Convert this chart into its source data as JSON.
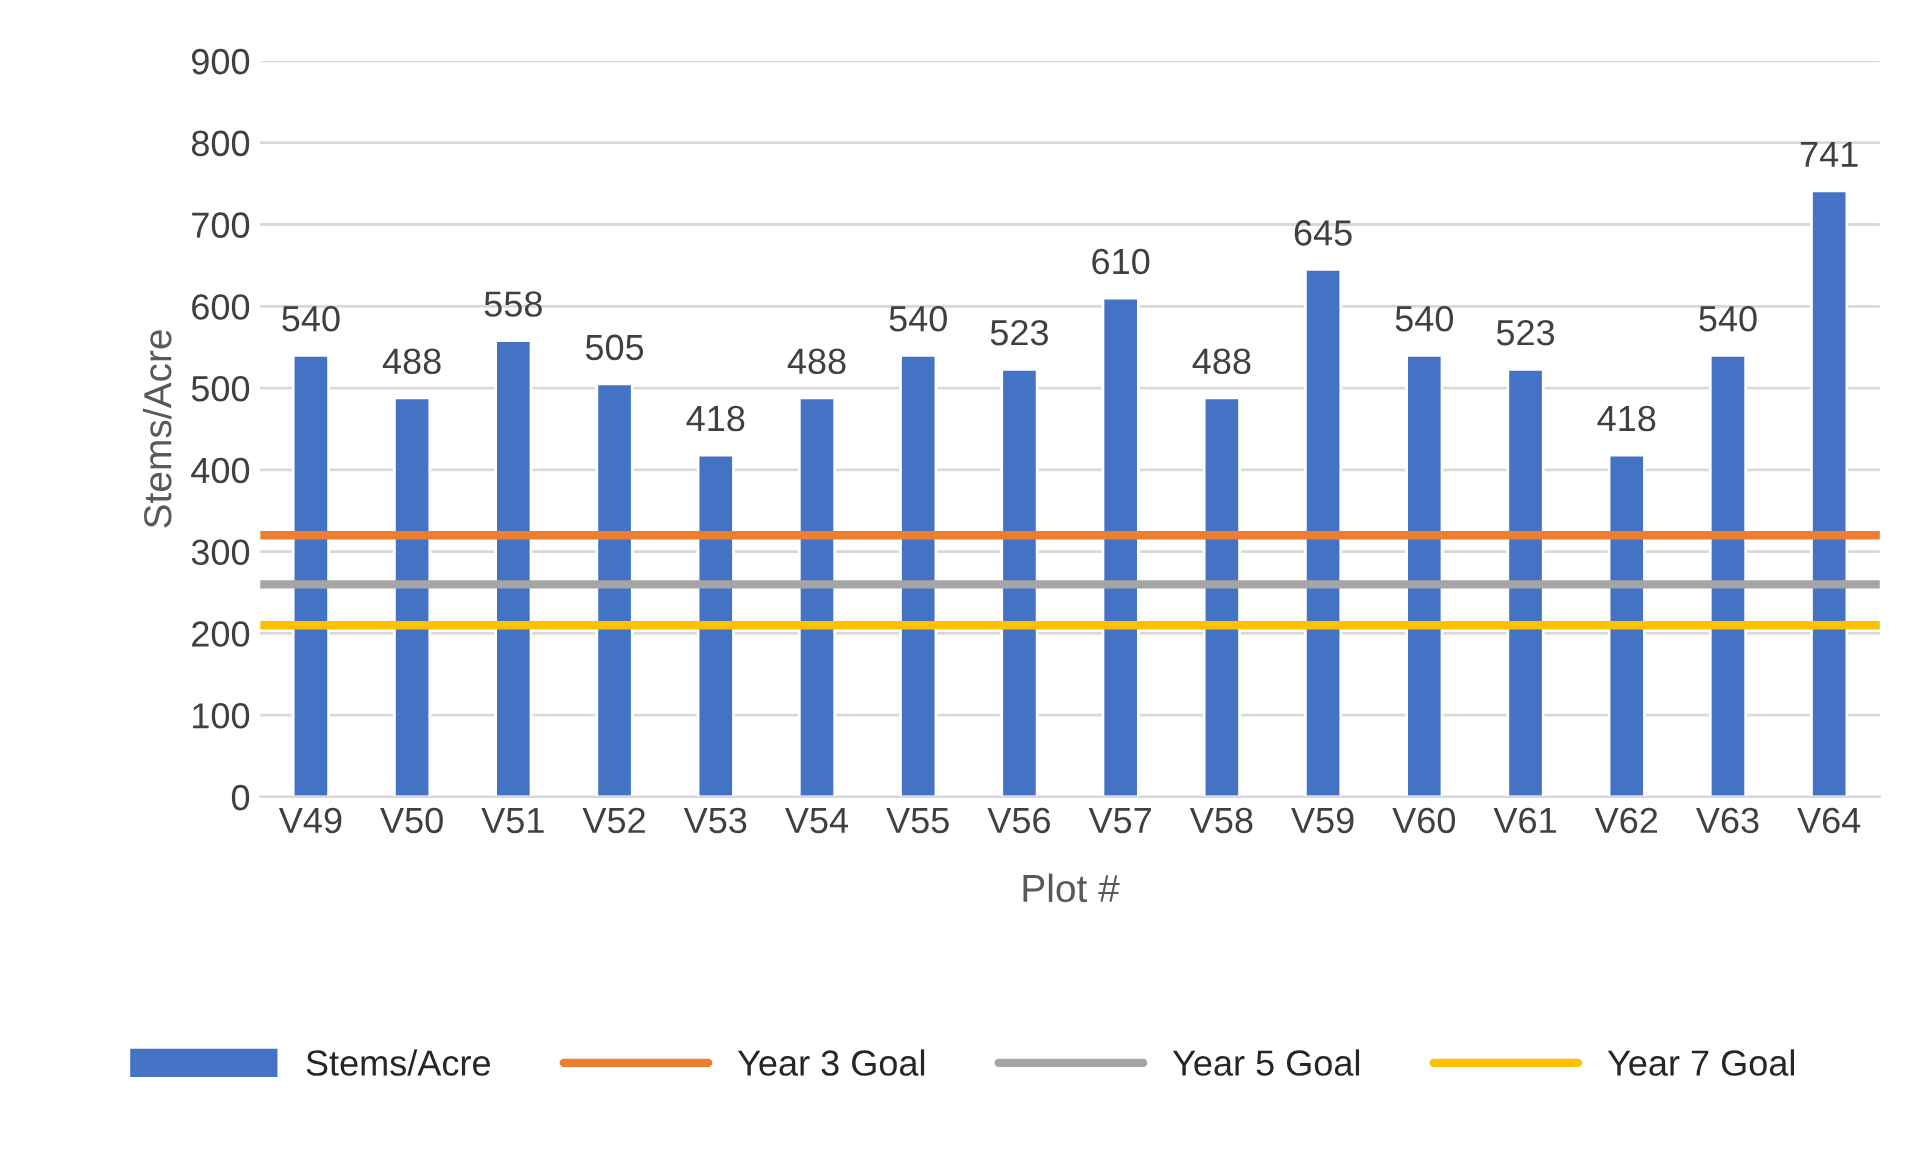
{
  "chart_data": {
    "type": "bar",
    "xlabel": "Plot #",
    "ylabel": "Stems/Acre",
    "categories": [
      "V49",
      "V50",
      "V51",
      "V52",
      "V53",
      "V54",
      "V55",
      "V56",
      "V57",
      "V58",
      "V59",
      "V60",
      "V61",
      "V62",
      "V63",
      "V64"
    ],
    "series": [
      {
        "name": "Stems/Acre",
        "color": "#4472c4",
        "values": [
          540,
          488,
          558,
          505,
          418,
          488,
          540,
          523,
          610,
          488,
          645,
          540,
          523,
          418,
          540,
          741
        ]
      }
    ],
    "ref_lines": [
      {
        "axis": "y",
        "value": 320,
        "label": "Year 3 Goal",
        "color": "#ed7d31"
      },
      {
        "axis": "y",
        "value": 260,
        "label": "Year 5 Goal",
        "color": "#a5a5a5"
      },
      {
        "axis": "y",
        "value": 210,
        "label": "Year 7 Goal",
        "color": "#ffc000"
      }
    ],
    "ylim": [
      0,
      900
    ],
    "yticks": [
      0,
      100,
      200,
      300,
      400,
      500,
      600,
      700,
      800,
      900
    ],
    "grid": "y",
    "legend": "bottom",
    "data_labels": true
  }
}
